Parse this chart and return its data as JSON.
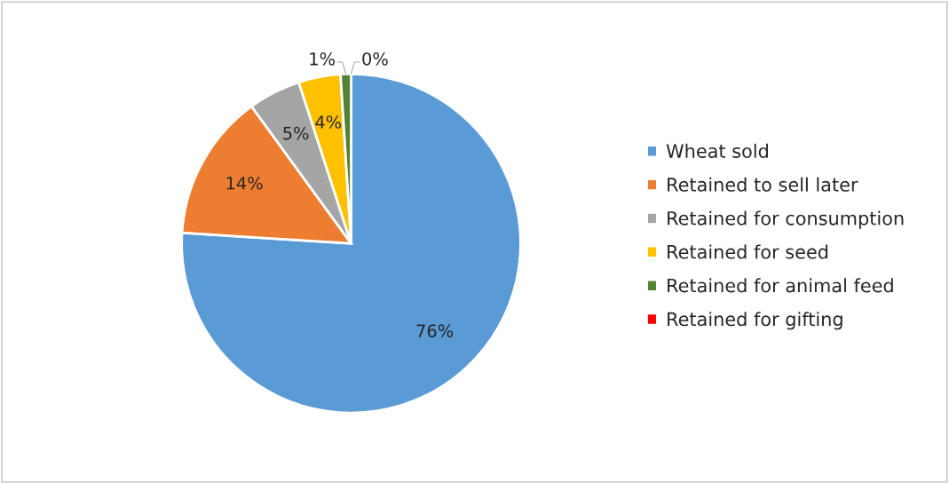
{
  "chart_data": {
    "type": "pie",
    "categories": [
      "Wheat sold",
      "Retained to sell later",
      "Retained for consumption",
      "Retained for seed",
      "Retained for animal feed",
      "Retained for gifting"
    ],
    "values": [
      76,
      14,
      5,
      4,
      1,
      0
    ],
    "colors": [
      "#5b9bd5",
      "#ed7d31",
      "#a5a5a5",
      "#ffc000",
      "#548235",
      "#ff0000"
    ],
    "value_labels": [
      "76%",
      "14%",
      "5%",
      "4%",
      "1%",
      "0%"
    ],
    "legend": "right"
  }
}
